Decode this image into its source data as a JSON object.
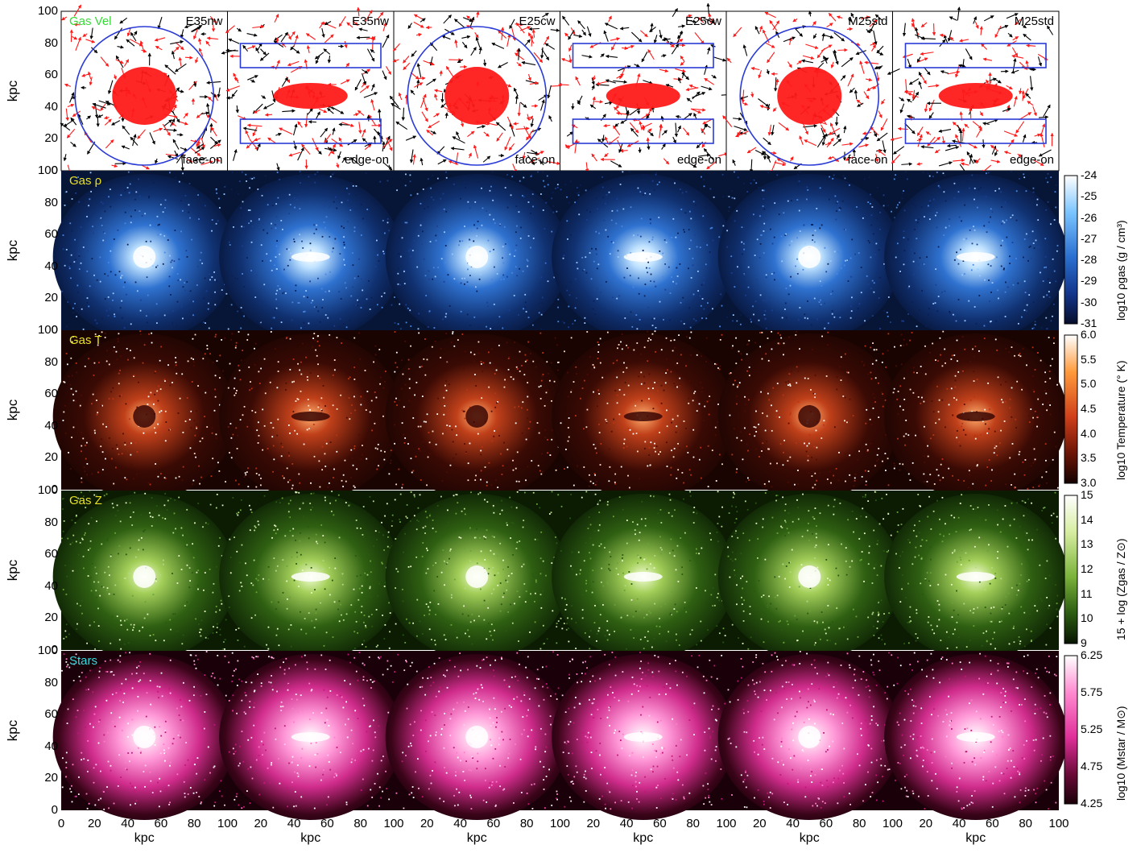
{
  "figure": {
    "columns": [
      {
        "model": "E35nw",
        "view": "face-on"
      },
      {
        "model": "E35nw",
        "view": "edge-on"
      },
      {
        "model": "E25cw",
        "view": "face-on"
      },
      {
        "model": "E25cw",
        "view": "edge-on"
      },
      {
        "model": "M25std",
        "view": "face-on"
      },
      {
        "model": "M25std",
        "view": "edge-on"
      }
    ],
    "rows": [
      {
        "label": "Gas Vel",
        "label_color": "#33dd33",
        "type": "vectors"
      },
      {
        "label": "Gas ρ",
        "label_color": "#e8e020",
        "type": "map",
        "palette": "blue",
        "colorbar": {
          "ticks": [
            "-24",
            "-25",
            "-26",
            "-27",
            "-28",
            "-29",
            "-30",
            "-31"
          ],
          "title": "log10 ρgas  (g / cm³)",
          "colors": [
            "#ffffff",
            "#7ac4ff",
            "#2a6fd0",
            "#12348a",
            "#060d2a"
          ]
        }
      },
      {
        "label": "Gas T",
        "label_color": "#e8e020",
        "type": "map",
        "palette": "red",
        "colorbar": {
          "ticks": [
            "6.0",
            "5.5",
            "5.0",
            "4.5",
            "4.0",
            "3.5",
            "3.0"
          ],
          "title": "log10 Temperature  (° K)",
          "colors": [
            "#ffffff",
            "#ff9a3c",
            "#d0401a",
            "#6a1406",
            "#140200"
          ]
        }
      },
      {
        "label": "Gas Z",
        "label_color": "#e8e020",
        "type": "map",
        "palette": "green",
        "colorbar": {
          "ticks": [
            "15",
            "14",
            "13",
            "12",
            "11",
            "10",
            "9"
          ],
          "title": "15 + log (Zgas / Z⊙)",
          "colors": [
            "#ffffff",
            "#d6eda0",
            "#7ab23a",
            "#2a5a10",
            "#071400"
          ]
        }
      },
      {
        "label": "Stars",
        "label_color": "#33dddd",
        "type": "map",
        "palette": "pink",
        "colorbar": {
          "ticks": [
            "6.25",
            "5.75",
            "5.25",
            "4.75",
            "4.25"
          ],
          "title": "log10 (Mstar / M⊙)",
          "colors": [
            "#ffffff",
            "#ff8ad0",
            "#e0309a",
            "#6a0a38",
            "#1a0008"
          ]
        }
      }
    ],
    "axes": {
      "ylabel": "kpc",
      "xlabel": "kpc",
      "yticks": [
        "100",
        "80",
        "60",
        "40",
        "20",
        "0"
      ],
      "xticks_first": [
        "0",
        "20",
        "40",
        "60",
        "80",
        "100"
      ],
      "xticks_rest": [
        "20",
        "40",
        "60",
        "80",
        "100"
      ]
    }
  }
}
